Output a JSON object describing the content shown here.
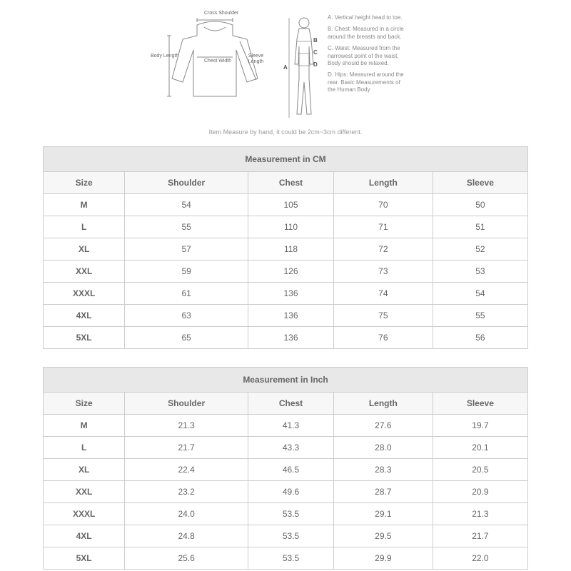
{
  "diagram": {
    "garment_labels": {
      "cross_shoulder": "Cross\nShoulder",
      "body_length": "Body\nLength",
      "chest_width": "Chest\nWidth",
      "sleeve_length": "Sleeve\nLength"
    },
    "body_labels": {
      "A": "A",
      "B": "B",
      "C": "C",
      "D": "D"
    },
    "body_legend": {
      "A": "A. Vertical height head to toe.",
      "B": "B. Chest: Measured in a circle around the breasts and back.",
      "C": "C. Waist: Measured from the narrowest point of the waist. Body should be relaxed.",
      "D": "D. Hips: Measured around the rear. Basic Measurements of the Human Body"
    },
    "disclaimer": "Item Measure by hand, it could be 2cm~3cm different."
  },
  "tables": {
    "cm": {
      "title": "Measurement in CM",
      "columns": [
        "Size",
        "Shoulder",
        "Chest",
        "Length",
        "Sleeve"
      ],
      "rows": [
        [
          "M",
          "54",
          "105",
          "70",
          "50"
        ],
        [
          "L",
          "55",
          "110",
          "71",
          "51"
        ],
        [
          "XL",
          "57",
          "118",
          "72",
          "52"
        ],
        [
          "XXL",
          "59",
          "126",
          "73",
          "53"
        ],
        [
          "XXXL",
          "61",
          "136",
          "74",
          "54"
        ],
        [
          "4XL",
          "63",
          "136",
          "75",
          "55"
        ],
        [
          "5XL",
          "65",
          "136",
          "76",
          "56"
        ]
      ]
    },
    "inch": {
      "title": "Measurement in Inch",
      "columns": [
        "Size",
        "Shoulder",
        "Chest",
        "Length",
        "Sleeve"
      ],
      "rows": [
        [
          "M",
          "21.3",
          "41.3",
          "27.6",
          "19.7"
        ],
        [
          "L",
          "21.7",
          "43.3",
          "28.0",
          "20.1"
        ],
        [
          "XL",
          "22.4",
          "46.5",
          "28.3",
          "20.5"
        ],
        [
          "XXL",
          "23.2",
          "49.6",
          "28.7",
          "20.9"
        ],
        [
          "XXXL",
          "24.0",
          "53.5",
          "29.1",
          "21.3"
        ],
        [
          "4XL",
          "24.8",
          "53.5",
          "29.5",
          "21.7"
        ],
        [
          "5XL",
          "25.6",
          "53.5",
          "29.9",
          "22.0"
        ]
      ]
    }
  },
  "styling": {
    "border_color": "#cccccc",
    "header_bg": "#e8e8e8",
    "subheader_bg": "#f7f7f7",
    "text_color": "#666666",
    "background": "#ffffff"
  }
}
